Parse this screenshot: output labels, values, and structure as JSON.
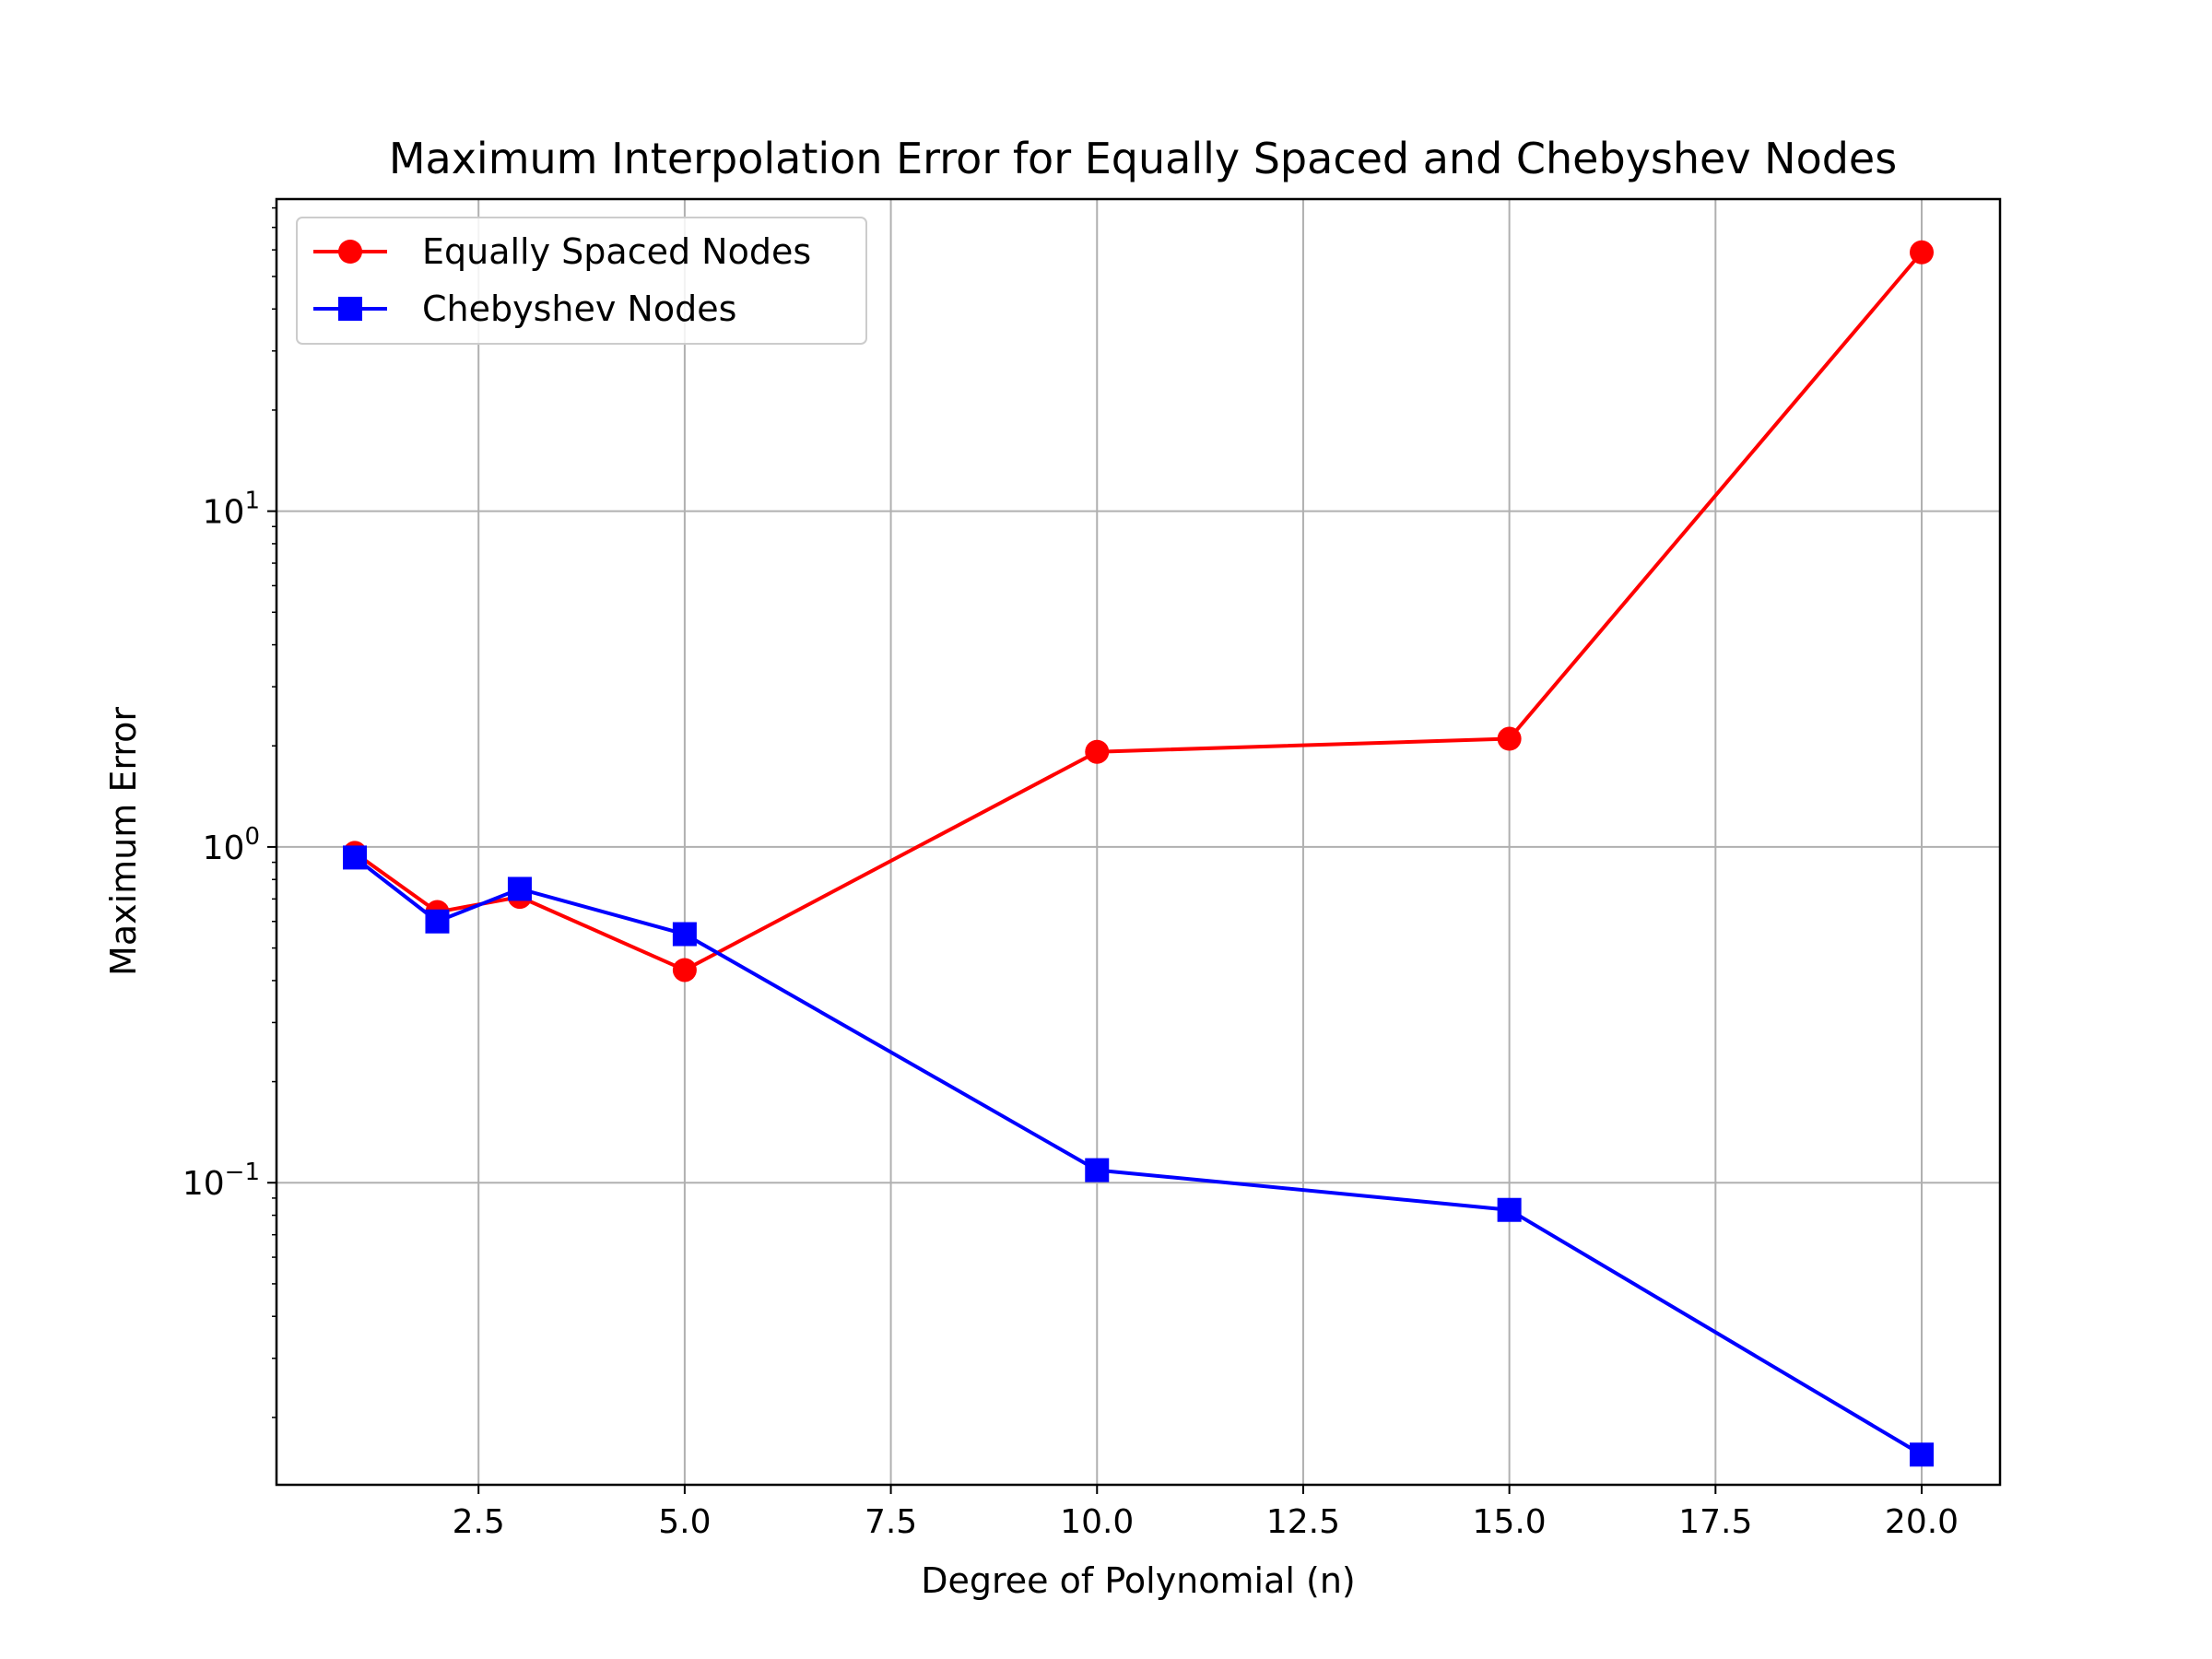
{
  "chart_data": {
    "type": "line",
    "title": "Maximum Interpolation Error for Equally Spaced and Chebyshev Nodes",
    "xlabel": "Degree of Polynomial (n)",
    "ylabel": "Maximum Error",
    "xlim": [
      0.05,
      20.95
    ],
    "ylim": [
      0.0126,
      85
    ],
    "yscale": "log",
    "grid": true,
    "legend_position": "top-left",
    "x_ticks": [
      {
        "value": 2.5,
        "label": "2.5"
      },
      {
        "value": 5.0,
        "label": "5.0"
      },
      {
        "value": 7.5,
        "label": "7.5"
      },
      {
        "value": 10.0,
        "label": "10.0"
      },
      {
        "value": 12.5,
        "label": "12.5"
      },
      {
        "value": 15.0,
        "label": "15.0"
      },
      {
        "value": 17.5,
        "label": "17.5"
      },
      {
        "value": 20.0,
        "label": "20.0"
      }
    ],
    "y_ticks": [
      {
        "value": 0.1,
        "base": "10",
        "exp": "−1"
      },
      {
        "value": 1,
        "base": "10",
        "exp": "0"
      },
      {
        "value": 10,
        "base": "10",
        "exp": "1"
      }
    ],
    "x": [
      1,
      2,
      3,
      5,
      10,
      15,
      20
    ],
    "series": [
      {
        "name": "Equally Spaced Nodes",
        "color": "#ff0000",
        "marker": "circle",
        "values": [
          0.96,
          0.64,
          0.71,
          0.43,
          1.92,
          2.1,
          59
        ]
      },
      {
        "name": "Chebyshev Nodes",
        "color": "#0000ff",
        "marker": "square",
        "values": [
          0.93,
          0.6,
          0.75,
          0.55,
          0.109,
          0.083,
          0.0155
        ]
      }
    ]
  }
}
